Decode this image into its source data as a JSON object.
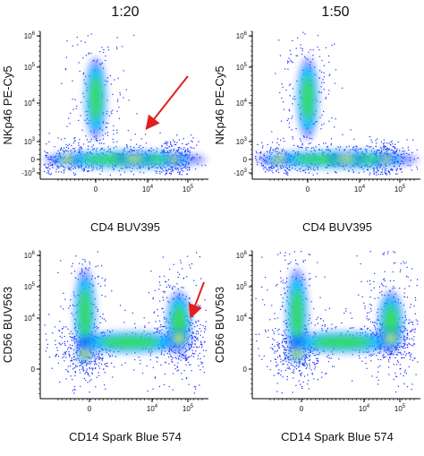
{
  "columns": [
    "1:20",
    "1:50"
  ],
  "rows": [
    {
      "x_label": "CD4 BUV395",
      "y_label": "NKp46 PE-Cy5",
      "x_ticks": [
        {
          "base": "0"
        },
        {
          "base": "10",
          "exp": "4"
        },
        {
          "base": "10",
          "exp": "5"
        }
      ],
      "y_ticks": [
        {
          "base": "10",
          "exp": "6"
        },
        {
          "base": "10",
          "exp": "5"
        },
        {
          "base": "10",
          "exp": "4"
        },
        {
          "base": "10",
          "exp": "3"
        },
        {
          "base": "0"
        },
        {
          "base": "-10",
          "exp": "3"
        }
      ]
    },
    {
      "x_label": "CD14 Spark Blue 574",
      "y_label": "CD56 BUV563",
      "x_ticks": [
        {
          "base": "0"
        },
        {
          "base": "10",
          "exp": "4"
        },
        {
          "base": "10",
          "exp": "5"
        }
      ],
      "y_ticks": [
        {
          "base": "10",
          "exp": "6"
        },
        {
          "base": "10",
          "exp": "5"
        },
        {
          "base": "10",
          "exp": "4"
        },
        {
          "base": "0"
        }
      ]
    }
  ]
}
